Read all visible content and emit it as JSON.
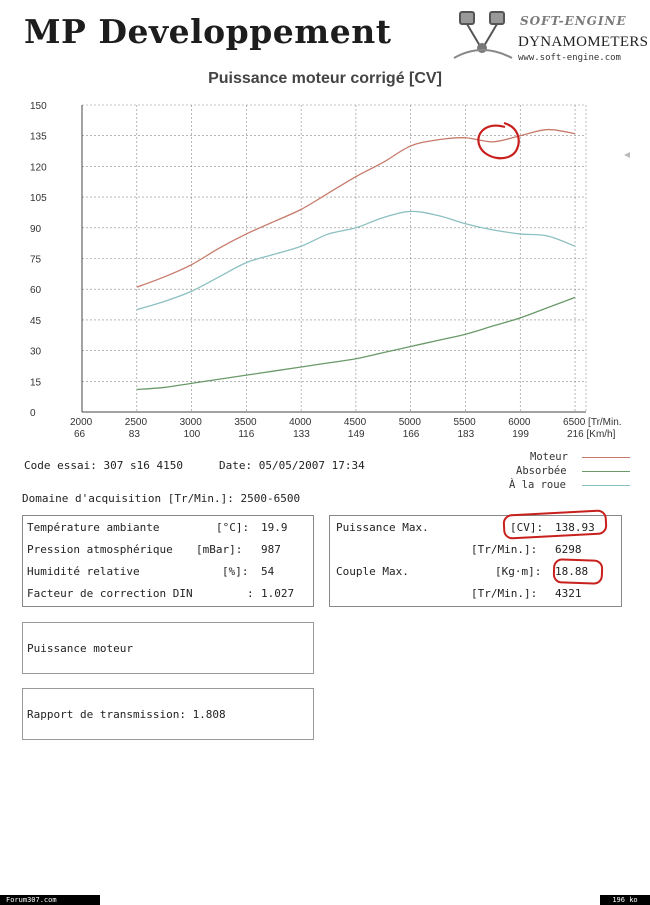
{
  "header": {
    "brand": "MP Developpement",
    "logo_brand": "SOFT-ENGINE",
    "logo_subtitle": "DYNAMOMETERS",
    "logo_url": "www.soft-engine.com"
  },
  "chart_data": {
    "type": "line",
    "title": "Puissance moteur corrigé [CV]",
    "x": [
      2500,
      2750,
      3000,
      3250,
      3500,
      3750,
      4000,
      4250,
      4500,
      4750,
      5000,
      5250,
      5500,
      5750,
      6000,
      6250,
      6500
    ],
    "series": [
      {
        "name": "Moteur",
        "color": "#c77a6a",
        "values": [
          61,
          66,
          72,
          80,
          87,
          93,
          99,
          107,
          115,
          122,
          130,
          133,
          134,
          132,
          135,
          138,
          136
        ]
      },
      {
        "name": "Absorbée",
        "color": "#6a9a6a",
        "values": [
          11,
          12,
          14,
          16,
          18,
          20,
          22,
          24,
          26,
          29,
          32,
          35,
          38,
          42,
          46,
          51,
          56
        ]
      },
      {
        "name": "À la roue",
        "color": "#8cc0c0",
        "values": [
          50,
          54,
          59,
          66,
          73,
          77,
          81,
          87,
          90,
          95,
          98,
          96,
          92,
          89,
          87,
          86,
          81
        ]
      }
    ],
    "xlim": [
      2000,
      6600
    ],
    "ylim": [
      0,
      150
    ],
    "y_ticks": [
      0,
      15,
      30,
      45,
      60,
      75,
      90,
      105,
      120,
      135,
      150
    ],
    "x_ticks": [
      2000,
      2500,
      3000,
      3500,
      4000,
      4500,
      5000,
      5500,
      6000,
      6500
    ],
    "x_tick_labels": [
      "2000",
      "2500",
      "3000",
      "3500",
      "4000",
      "4500",
      "5000",
      "5500",
      "6000",
      "6500 [Tr/Min."
    ],
    "x2_tick_labels": [
      "66",
      "83",
      "100",
      "116",
      "133",
      "149",
      "166",
      "183",
      "199",
      "216 [Km/h]"
    ],
    "grid": true,
    "legend_position": "bottom-right"
  },
  "info": {
    "code_essai": "Code essai: 307 s16 4150",
    "date": "Date: 05/05/2007 17:34",
    "domaine": "Domaine d'acquisition [Tr/Min.]: 2500-6500"
  },
  "conditions": {
    "rows": [
      {
        "label": "Température ambiante",
        "unit": "[°C]:",
        "value": "19.9"
      },
      {
        "label": "Pression atmosphérique",
        "unit": "[mBar]:",
        "value": "987"
      },
      {
        "label": "Humidité relative",
        "unit": "[%]:",
        "value": "54"
      },
      {
        "label": "Facteur de correction DIN",
        "unit": ":",
        "value": "1.027"
      }
    ]
  },
  "results": {
    "puissance_label": "Puissance Max.",
    "puissance_unit": "[CV]:",
    "puissance_value": "138.93",
    "puissance_rpm_unit": "[Tr/Min.]:",
    "puissance_rpm": "6298",
    "couple_label": "Couple Max.",
    "couple_unit": "[Kg·m]:",
    "couple_value": "18.88",
    "couple_rpm_unit": "[Tr/Min.]:",
    "couple_rpm": "4321"
  },
  "boxes": {
    "puissance_moteur": "Puissance moteur",
    "rapport": "Rapport de transmission: 1.808"
  },
  "footer": {
    "left": "Forum307.com",
    "right": "196 ko"
  }
}
